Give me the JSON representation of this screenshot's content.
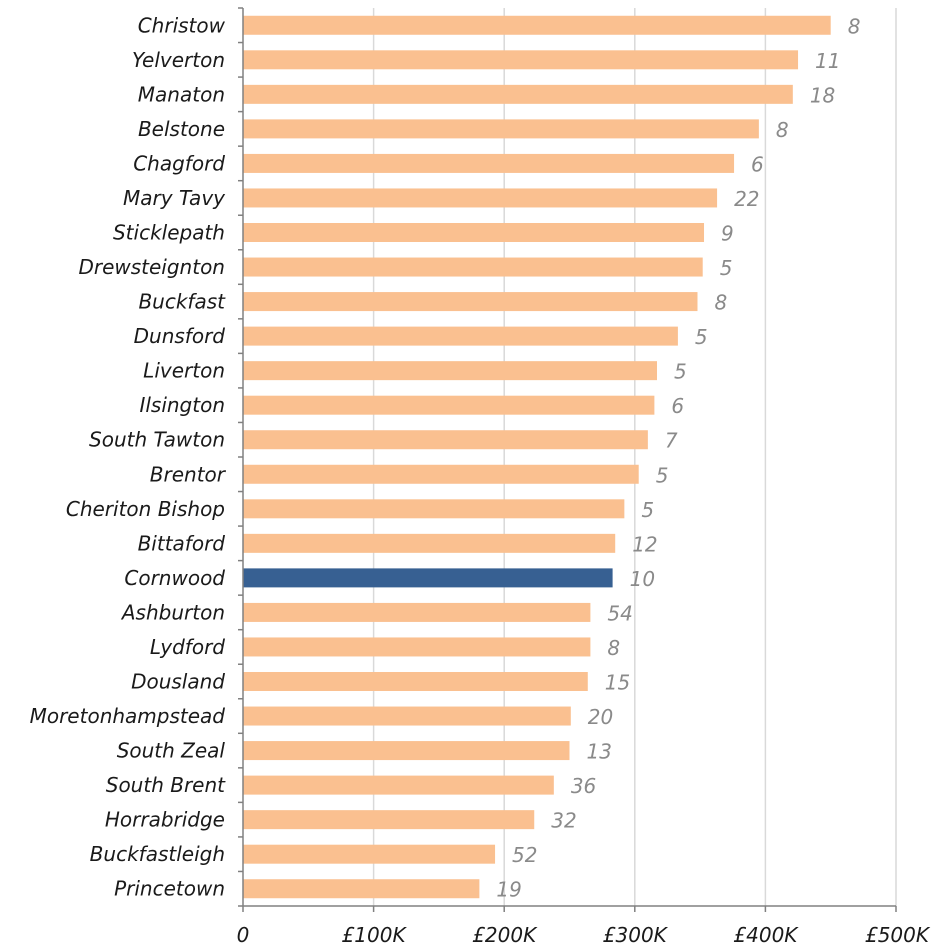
{
  "chart_data": {
    "type": "bar",
    "orientation": "horizontal",
    "title": "",
    "xlabel": "",
    "ylabel": "",
    "xlim": [
      0,
      500000
    ],
    "x_ticks": [
      {
        "value": 0,
        "label": "0"
      },
      {
        "value": 100000,
        "label": "£100K"
      },
      {
        "value": 200000,
        "label": "£200K"
      },
      {
        "value": 300000,
        "label": "£300K"
      },
      {
        "value": 400000,
        "label": "£400K"
      },
      {
        "value": 500000,
        "label": "£500K"
      }
    ],
    "grid": true,
    "legend": "none",
    "colors": {
      "default": "#FAC090",
      "highlight": "#376092",
      "grid": "#D9D9D9",
      "axis": "#808080",
      "data_label": "#8A8A8A"
    },
    "highlight_category": "Cornwood",
    "categories": [
      "Christow",
      "Yelverton",
      "Manaton",
      "Belstone",
      "Chagford",
      "Mary Tavy",
      "Sticklepath",
      "Drewsteignton",
      "Buckfast",
      "Dunsford",
      "Liverton",
      "Ilsington",
      "South Tawton",
      "Brentor",
      "Cheriton Bishop",
      "Bittaford",
      "Cornwood",
      "Ashburton",
      "Lydford",
      "Dousland",
      "Moretonhampstead",
      "South Zeal",
      "South Brent",
      "Horrabridge",
      "Buckfastleigh",
      "Princetown"
    ],
    "values": [
      450000,
      425000,
      421000,
      395000,
      376000,
      363000,
      353000,
      352000,
      348000,
      333000,
      317000,
      315000,
      310000,
      303000,
      292000,
      285000,
      283000,
      266000,
      266000,
      264000,
      251000,
      250000,
      238000,
      223000,
      193000,
      181000
    ],
    "data_labels": [
      "8",
      "11",
      "18",
      "8",
      "6",
      "22",
      "9",
      "5",
      "8",
      "5",
      "5",
      "6",
      "7",
      "5",
      "5",
      "12",
      "10",
      "54",
      "8",
      "15",
      "20",
      "13",
      "36",
      "32",
      "52",
      "19"
    ]
  }
}
